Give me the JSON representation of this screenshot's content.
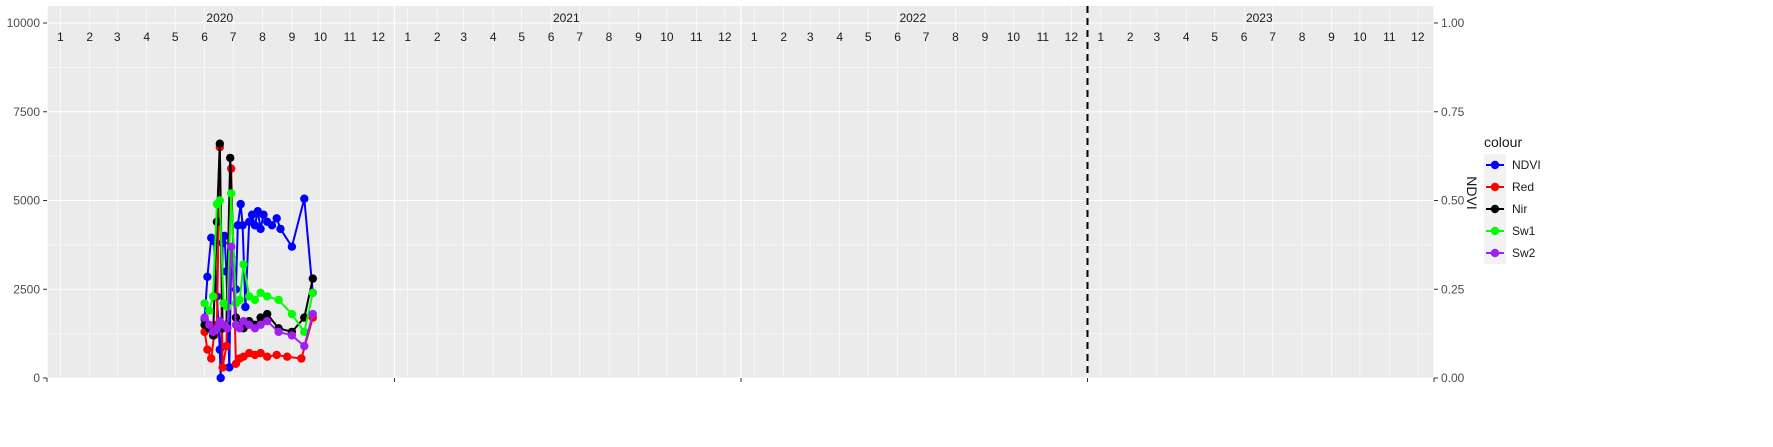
{
  "chart_data": {
    "type": "line",
    "title": "",
    "xlabel": "",
    "ylabel": "",
    "y2label": "NDVI",
    "ylim": [
      0,
      10000
    ],
    "y2lim": [
      0,
      1
    ],
    "yticks": [
      "0",
      "2500",
      "5000",
      "7500",
      "10000"
    ],
    "y2ticks": [
      "0.00",
      "0.25",
      "0.50",
      "0.75",
      "1.00"
    ],
    "grid": true,
    "legend": {
      "title": "colour",
      "position": "right"
    },
    "colors": {
      "NDVI": "#0000ff",
      "Red": "#ff0000",
      "Nir": "#000000",
      "Sw1": "#00ff00",
      "Sw2": "#a020f0"
    },
    "years": [
      "2020",
      "2021",
      "2022",
      "2023"
    ],
    "months": [
      "1",
      "2",
      "3",
      "4",
      "5",
      "6",
      "7",
      "8",
      "9",
      "10",
      "11",
      "12"
    ],
    "vline_date": "2023-01-01",
    "series": [
      {
        "name": "NDVI",
        "axis": "right",
        "points": [
          [
            "2020-06-15",
            0.165
          ],
          [
            "2020-06-18",
            0.285
          ],
          [
            "2020-06-22",
            0.395
          ],
          [
            "2020-06-25",
            0.385
          ],
          [
            "2020-06-28",
            0.23
          ],
          [
            "2020-07-01",
            0.08
          ],
          [
            "2020-07-02",
            0.0
          ],
          [
            "2020-07-04",
            0.38
          ],
          [
            "2020-07-06",
            0.4
          ],
          [
            "2020-07-08",
            0.3
          ],
          [
            "2020-07-11",
            0.03
          ],
          [
            "2020-07-13",
            0.34
          ],
          [
            "2020-07-18",
            0.25
          ],
          [
            "2020-07-20",
            0.43
          ],
          [
            "2020-07-23",
            0.49
          ],
          [
            "2020-07-25",
            0.43
          ],
          [
            "2020-07-28",
            0.2
          ],
          [
            "2020-08-01",
            0.44
          ],
          [
            "2020-08-04",
            0.46
          ],
          [
            "2020-08-07",
            0.43
          ],
          [
            "2020-08-10",
            0.47
          ],
          [
            "2020-08-13",
            0.42
          ],
          [
            "2020-08-16",
            0.46
          ],
          [
            "2020-08-20",
            0.44
          ],
          [
            "2020-08-25",
            0.43
          ],
          [
            "2020-08-30",
            0.45
          ],
          [
            "2020-09-03",
            0.42
          ],
          [
            "2020-09-15",
            0.37
          ],
          [
            "2020-09-28",
            0.505
          ],
          [
            "2020-10-07",
            0.24
          ]
        ]
      },
      {
        "name": "Red",
        "axis": "left",
        "points": [
          [
            "2020-06-15",
            1300
          ],
          [
            "2020-06-18",
            800
          ],
          [
            "2020-06-22",
            550
          ],
          [
            "2020-06-25",
            1200
          ],
          [
            "2020-06-28",
            1500
          ],
          [
            "2020-07-01",
            6500
          ],
          [
            "2020-07-04",
            300
          ],
          [
            "2020-07-08",
            900
          ],
          [
            "2020-07-13",
            5900
          ],
          [
            "2020-07-18",
            400
          ],
          [
            "2020-07-22",
            550
          ],
          [
            "2020-07-26",
            600
          ],
          [
            "2020-08-01",
            700
          ],
          [
            "2020-08-07",
            650
          ],
          [
            "2020-08-13",
            700
          ],
          [
            "2020-08-20",
            600
          ],
          [
            "2020-08-30",
            650
          ],
          [
            "2020-09-10",
            600
          ],
          [
            "2020-09-25",
            550
          ],
          [
            "2020-10-07",
            1700
          ]
        ]
      },
      {
        "name": "Nir",
        "axis": "left",
        "points": [
          [
            "2020-06-15",
            1500
          ],
          [
            "2020-06-20",
            1400
          ],
          [
            "2020-06-24",
            1200
          ],
          [
            "2020-06-28",
            4400
          ],
          [
            "2020-07-01",
            6600
          ],
          [
            "2020-07-04",
            1400
          ],
          [
            "2020-07-08",
            1500
          ],
          [
            "2020-07-12",
            6200
          ],
          [
            "2020-07-18",
            1700
          ],
          [
            "2020-07-22",
            1500
          ],
          [
            "2020-07-26",
            1400
          ],
          [
            "2020-08-01",
            1600
          ],
          [
            "2020-08-07",
            1500
          ],
          [
            "2020-08-13",
            1700
          ],
          [
            "2020-08-20",
            1800
          ],
          [
            "2020-09-01",
            1400
          ],
          [
            "2020-09-15",
            1300
          ],
          [
            "2020-09-28",
            1700
          ],
          [
            "2020-10-07",
            2800
          ]
        ]
      },
      {
        "name": "Sw1",
        "axis": "left",
        "points": [
          [
            "2020-06-15",
            2100
          ],
          [
            "2020-06-20",
            1900
          ],
          [
            "2020-06-24",
            2300
          ],
          [
            "2020-06-28",
            4900
          ],
          [
            "2020-07-01",
            5000
          ],
          [
            "2020-07-05",
            2100
          ],
          [
            "2020-07-09",
            2000
          ],
          [
            "2020-07-13",
            5200
          ],
          [
            "2020-07-18",
            2100
          ],
          [
            "2020-07-22",
            2200
          ],
          [
            "2020-07-26",
            3200
          ],
          [
            "2020-08-01",
            2300
          ],
          [
            "2020-08-07",
            2200
          ],
          [
            "2020-08-13",
            2400
          ],
          [
            "2020-08-20",
            2300
          ],
          [
            "2020-09-01",
            2200
          ],
          [
            "2020-09-15",
            1800
          ],
          [
            "2020-09-28",
            1300
          ],
          [
            "2020-10-07",
            2400
          ]
        ]
      },
      {
        "name": "Sw2",
        "axis": "left",
        "points": [
          [
            "2020-06-15",
            1700
          ],
          [
            "2020-06-20",
            1500
          ],
          [
            "2020-06-24",
            1300
          ],
          [
            "2020-06-28",
            1400
          ],
          [
            "2020-07-01",
            1600
          ],
          [
            "2020-07-05",
            1500
          ],
          [
            "2020-07-09",
            1400
          ],
          [
            "2020-07-13",
            3700
          ],
          [
            "2020-07-18",
            1500
          ],
          [
            "2020-07-22",
            1400
          ],
          [
            "2020-07-26",
            1600
          ],
          [
            "2020-08-01",
            1500
          ],
          [
            "2020-08-07",
            1400
          ],
          [
            "2020-08-13",
            1500
          ],
          [
            "2020-08-20",
            1600
          ],
          [
            "2020-09-01",
            1300
          ],
          [
            "2020-09-15",
            1200
          ],
          [
            "2020-09-28",
            900
          ],
          [
            "2020-10-07",
            1800
          ]
        ]
      }
    ]
  }
}
